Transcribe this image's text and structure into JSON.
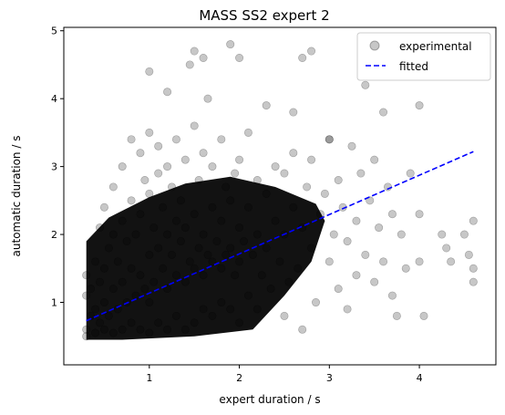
{
  "chart_data": {
    "type": "scatter",
    "title": "MASS SS2 expert 2",
    "xlabel": "expert duration / s",
    "ylabel": "automatic duration / s",
    "xlim": [
      0.05,
      4.85
    ],
    "ylim": [
      0.08,
      5.05
    ],
    "xticks": [
      1,
      2,
      3,
      4
    ],
    "yticks": [
      1,
      2,
      3,
      4,
      5
    ],
    "grid": false,
    "legend_position": "top-right",
    "colors": {
      "experimental": "#000000",
      "fitted": "#0000ff"
    },
    "series": [
      {
        "name": "experimental",
        "kind": "points",
        "points": [
          [
            0.3,
            0.5
          ],
          [
            0.3,
            1.1
          ],
          [
            0.3,
            1.4
          ],
          [
            0.3,
            0.6
          ],
          [
            0.35,
            0.8
          ],
          [
            0.35,
            1.2
          ],
          [
            0.4,
            0.55
          ],
          [
            0.4,
            1.6
          ],
          [
            0.4,
            0.9
          ],
          [
            0.45,
            0.7
          ],
          [
            0.45,
            1.3
          ],
          [
            0.45,
            2.1
          ],
          [
            0.5,
            0.6
          ],
          [
            0.5,
            1.0
          ],
          [
            0.5,
            1.5
          ],
          [
            0.5,
            2.4
          ],
          [
            0.55,
            0.8
          ],
          [
            0.55,
            1.8
          ],
          [
            0.6,
            0.55
          ],
          [
            0.6,
            1.2
          ],
          [
            0.6,
            2.0
          ],
          [
            0.6,
            2.7
          ],
          [
            0.65,
            0.9
          ],
          [
            0.65,
            1.6
          ],
          [
            0.7,
            0.6
          ],
          [
            0.7,
            1.3
          ],
          [
            0.7,
            2.2
          ],
          [
            0.7,
            3.0
          ],
          [
            0.75,
            1.0
          ],
          [
            0.75,
            1.9
          ],
          [
            0.8,
            0.7
          ],
          [
            0.8,
            1.5
          ],
          [
            0.8,
            2.5
          ],
          [
            0.8,
            3.4
          ],
          [
            0.85,
            1.1
          ],
          [
            0.85,
            2.0
          ],
          [
            0.9,
            0.6
          ],
          [
            0.9,
            1.4
          ],
          [
            0.9,
            2.3
          ],
          [
            0.9,
            3.2
          ],
          [
            0.95,
            1.2
          ],
          [
            0.95,
            2.8
          ],
          [
            1.0,
            0.55
          ],
          [
            1.0,
            1.0
          ],
          [
            1.0,
            1.7
          ],
          [
            1.0,
            2.6
          ],
          [
            1.0,
            3.5
          ],
          [
            1.05,
            1.3
          ],
          [
            1.05,
            2.1
          ],
          [
            1.1,
            0.7
          ],
          [
            1.1,
            1.8
          ],
          [
            1.1,
            2.9
          ],
          [
            1.1,
            3.3
          ],
          [
            1.15,
            1.5
          ],
          [
            1.15,
            2.4
          ],
          [
            1.2,
            0.6
          ],
          [
            1.2,
            1.2
          ],
          [
            1.2,
            2.0
          ],
          [
            1.2,
            3.0
          ],
          [
            1.25,
            1.7
          ],
          [
            1.25,
            2.7
          ],
          [
            1.3,
            0.8
          ],
          [
            1.3,
            1.4
          ],
          [
            1.3,
            2.2
          ],
          [
            1.3,
            3.4
          ],
          [
            1.35,
            1.9
          ],
          [
            1.35,
            2.5
          ],
          [
            1.4,
            0.6
          ],
          [
            1.4,
            1.3
          ],
          [
            1.4,
            2.1
          ],
          [
            1.4,
            3.1
          ],
          [
            1.45,
            1.6
          ],
          [
            1.45,
            4.5
          ],
          [
            1.5,
            0.7
          ],
          [
            1.5,
            1.5
          ],
          [
            1.5,
            2.3
          ],
          [
            1.5,
            3.6
          ],
          [
            1.55,
            1.8
          ],
          [
            1.55,
            2.8
          ],
          [
            1.6,
            0.9
          ],
          [
            1.6,
            1.4
          ],
          [
            1.6,
            2.0
          ],
          [
            1.6,
            3.2
          ],
          [
            1.65,
            1.7
          ],
          [
            1.65,
            4.0
          ],
          [
            1.7,
            0.8
          ],
          [
            1.7,
            1.6
          ],
          [
            1.7,
            2.4
          ],
          [
            1.7,
            3.0
          ],
          [
            1.75,
            1.9
          ],
          [
            1.8,
            1.0
          ],
          [
            1.8,
            1.5
          ],
          [
            1.8,
            2.2
          ],
          [
            1.8,
            3.4
          ],
          [
            1.85,
            1.7
          ],
          [
            1.85,
            2.7
          ],
          [
            1.9,
            0.9
          ],
          [
            1.9,
            1.8
          ],
          [
            1.9,
            2.5
          ],
          [
            1.95,
            1.4
          ],
          [
            1.95,
            2.9
          ],
          [
            2.0,
            0.7
          ],
          [
            2.0,
            1.6
          ],
          [
            2.0,
            2.1
          ],
          [
            2.0,
            3.1
          ],
          [
            2.05,
            1.9
          ],
          [
            2.1,
            1.1
          ],
          [
            2.1,
            2.4
          ],
          [
            2.1,
            3.5
          ],
          [
            2.15,
            1.7
          ],
          [
            2.2,
            0.9
          ],
          [
            2.2,
            2.0
          ],
          [
            2.2,
            2.8
          ],
          [
            2.25,
            1.4
          ],
          [
            2.3,
            1.8
          ],
          [
            2.3,
            2.6
          ],
          [
            2.35,
            1.2
          ],
          [
            2.4,
            2.2
          ],
          [
            2.4,
            3.0
          ],
          [
            2.45,
            1.6
          ],
          [
            2.5,
            0.8
          ],
          [
            2.5,
            2.0
          ],
          [
            2.5,
            2.9
          ],
          [
            2.55,
            1.3
          ],
          [
            2.6,
            2.4
          ],
          [
            2.6,
            3.2
          ],
          [
            2.65,
            1.5
          ],
          [
            2.7,
            2.1
          ],
          [
            2.7,
            0.6
          ],
          [
            2.75,
            2.7
          ],
          [
            2.8,
            1.8
          ],
          [
            2.8,
            3.1
          ],
          [
            2.85,
            1.0
          ],
          [
            2.9,
            2.3
          ],
          [
            2.95,
            2.6
          ],
          [
            3.0,
            1.6
          ],
          [
            3.0,
            3.4
          ],
          [
            3.05,
            2.0
          ],
          [
            3.1,
            1.2
          ],
          [
            3.1,
            2.8
          ],
          [
            3.15,
            2.4
          ],
          [
            3.2,
            0.9
          ],
          [
            3.2,
            1.9
          ],
          [
            3.25,
            3.3
          ],
          [
            3.3,
            2.2
          ],
          [
            3.3,
            1.4
          ],
          [
            3.35,
            2.9
          ],
          [
            3.4,
            1.7
          ],
          [
            3.4,
            4.2
          ],
          [
            3.45,
            2.5
          ],
          [
            3.5,
            1.3
          ],
          [
            3.5,
            3.1
          ],
          [
            3.55,
            2.1
          ],
          [
            3.6,
            1.6
          ],
          [
            3.6,
            3.8
          ],
          [
            3.65,
            2.7
          ],
          [
            3.7,
            1.1
          ],
          [
            3.7,
            2.3
          ],
          [
            3.75,
            0.8
          ],
          [
            3.8,
            2.0
          ],
          [
            3.85,
            1.5
          ],
          [
            3.9,
            2.9
          ],
          [
            4.0,
            3.9
          ],
          [
            4.0,
            2.3
          ],
          [
            4.0,
            1.6
          ],
          [
            4.05,
            0.8
          ],
          [
            4.25,
            2.0
          ],
          [
            4.3,
            1.8
          ],
          [
            4.35,
            1.6
          ],
          [
            4.5,
            2.0
          ],
          [
            4.55,
            1.7
          ],
          [
            4.6,
            2.2
          ],
          [
            4.6,
            1.5
          ],
          [
            4.6,
            1.3
          ],
          [
            1.0,
            4.4
          ],
          [
            1.2,
            4.1
          ],
          [
            1.5,
            4.7
          ],
          [
            1.6,
            4.6
          ],
          [
            1.9,
            4.8
          ],
          [
            2.0,
            4.6
          ],
          [
            2.7,
            4.6
          ],
          [
            2.8,
            4.7
          ],
          [
            3.0,
            3.4
          ],
          [
            2.3,
            3.9
          ],
          [
            2.6,
            3.8
          ]
        ],
        "dense_region_polygon": [
          [
            0.3,
            0.45
          ],
          [
            0.3,
            1.9
          ],
          [
            0.55,
            2.25
          ],
          [
            1.0,
            2.55
          ],
          [
            1.4,
            2.75
          ],
          [
            1.9,
            2.85
          ],
          [
            2.4,
            2.7
          ],
          [
            2.85,
            2.45
          ],
          [
            2.95,
            2.2
          ],
          [
            2.8,
            1.6
          ],
          [
            2.5,
            1.1
          ],
          [
            2.15,
            0.6
          ],
          [
            1.5,
            0.5
          ],
          [
            0.7,
            0.45
          ]
        ]
      },
      {
        "name": "fitted",
        "kind": "line",
        "style": "dashed",
        "x": [
          0.3,
          4.6
        ],
        "y": [
          0.73,
          3.22
        ]
      }
    ]
  }
}
